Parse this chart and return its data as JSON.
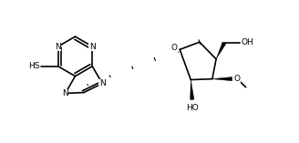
{
  "background": "#ffffff",
  "line_color": "#000000",
  "lw": 1.2,
  "fs": 6.5,
  "xlim": [
    0,
    10.5
  ],
  "ylim": [
    0,
    5.2
  ]
}
